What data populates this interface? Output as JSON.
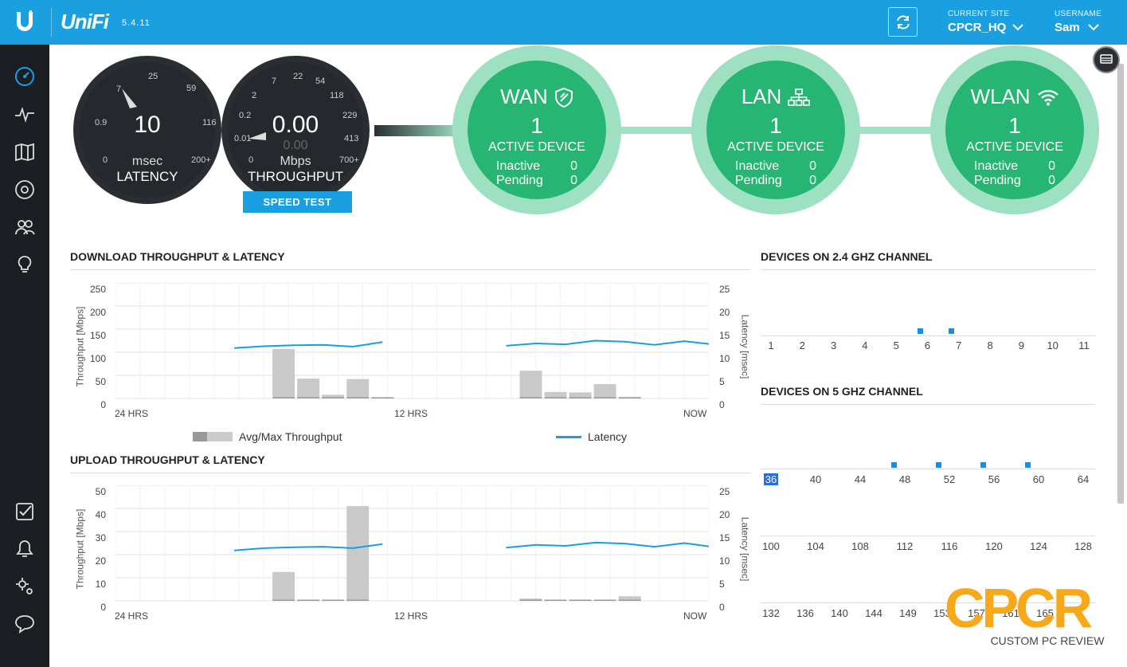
{
  "header": {
    "brand": "UniFi",
    "version": "5.4.11",
    "current_site_caption": "CURRENT SITE",
    "current_site": "CPCR_HQ",
    "username_caption": "USERNAME",
    "username": "Sam"
  },
  "sidebar": {
    "top_items": [
      "dashboard-icon",
      "statistics-icon",
      "map-icon",
      "devices-icon",
      "clients-icon",
      "insights-icon"
    ],
    "bottom_items": [
      "events-icon",
      "alerts-icon",
      "settings-icon",
      "chat-icon"
    ]
  },
  "gauges": {
    "latency": {
      "value": "10",
      "unit": "msec",
      "caption": "LATENCY",
      "ticks": [
        "0",
        "0.9",
        "7",
        "25",
        "59",
        "116",
        "200+"
      ]
    },
    "throughput": {
      "value": "0.00",
      "sub_value": "0.00",
      "unit": "Mbps",
      "caption": "THROUGHPUT",
      "ticks": [
        "0",
        "0.01",
        "0.2",
        "2",
        "7",
        "22",
        "54",
        "118",
        "229",
        "413",
        "700+"
      ]
    },
    "speed_test_label": "SPEED TEST"
  },
  "status": [
    {
      "title": "WAN",
      "count": "1",
      "label": "ACTIVE DEVICE",
      "inactive_label": "Inactive",
      "inactive": "0",
      "pending_label": "Pending",
      "pending": "0"
    },
    {
      "title": "LAN",
      "count": "1",
      "label": "ACTIVE DEVICE",
      "inactive_label": "Inactive",
      "inactive": "0",
      "pending_label": "Pending",
      "pending": "0"
    },
    {
      "title": "WLAN",
      "count": "1",
      "label": "ACTIVE DEVICE",
      "inactive_label": "Inactive",
      "inactive": "0",
      "pending_label": "Pending",
      "pending": "0"
    }
  ],
  "download": {
    "title": "DOWNLOAD THROUGHPUT & LATENCY",
    "y_left_title": "Throughput [Mbps]",
    "y_right_title": "Latency [msec]",
    "y_left_ticks": [
      "250",
      "200",
      "150",
      "100",
      "50",
      "0"
    ],
    "y_right_ticks": [
      "25",
      "20",
      "15",
      "10",
      "5",
      "0"
    ],
    "x_ticks": [
      "24 HRS",
      "12 HRS",
      "NOW"
    ],
    "legend_throughput": "Avg/Max Throughput",
    "legend_latency": "Latency"
  },
  "upload": {
    "title": "UPLOAD THROUGHPUT & LATENCY",
    "y_left_title": "Throughput [Mbps]",
    "y_right_title": "Latency [msec]",
    "y_left_ticks": [
      "50",
      "40",
      "30",
      "20",
      "10",
      "0"
    ],
    "y_right_ticks": [
      "25",
      "20",
      "15",
      "10",
      "5",
      "0"
    ],
    "x_ticks": [
      "24 HRS",
      "12 HRS",
      "NOW"
    ]
  },
  "chart_data": [
    {
      "type": "bar",
      "title": "DOWNLOAD THROUGHPUT & LATENCY",
      "ylabel": "Throughput [Mbps]",
      "y2label": "Latency [msec]",
      "ylim": [
        0,
        250
      ],
      "y2lim": [
        0,
        25
      ],
      "x_ticks": [
        "24 HRS",
        "12 HRS",
        "NOW"
      ],
      "xlim_hours": [
        -24,
        0
      ],
      "bars_throughput": [
        {
          "hour": -17.2,
          "value": 107
        },
        {
          "hour": -16.2,
          "value": 43
        },
        {
          "hour": -15.2,
          "value": 8
        },
        {
          "hour": -14.2,
          "value": 42
        },
        {
          "hour": -13.2,
          "value": 2
        },
        {
          "hour": -7.2,
          "value": 60
        },
        {
          "hour": -6.2,
          "value": 14
        },
        {
          "hour": -5.2,
          "value": 13
        },
        {
          "hour": -4.2,
          "value": 31
        },
        {
          "hour": -3.2,
          "value": 3
        }
      ],
      "latency_segments": [
        [
          {
            "hour": -19.2,
            "value": 10.9
          },
          {
            "hour": -18,
            "value": 11.3
          },
          {
            "hour": -16.8,
            "value": 11.5
          },
          {
            "hour": -15.6,
            "value": 11.6
          },
          {
            "hour": -14.4,
            "value": 11.2
          },
          {
            "hour": -13.2,
            "value": 12.2
          }
        ],
        [
          {
            "hour": -8.2,
            "value": 11.4
          },
          {
            "hour": -7,
            "value": 11.9
          },
          {
            "hour": -5.8,
            "value": 11.7
          },
          {
            "hour": -4.6,
            "value": 12.5
          },
          {
            "hour": -3.4,
            "value": 12.3
          },
          {
            "hour": -2.2,
            "value": 11.6
          },
          {
            "hour": -1,
            "value": 12.4
          },
          {
            "hour": 0,
            "value": 11.8
          }
        ]
      ],
      "legend": [
        "Avg/Max Throughput",
        "Latency"
      ]
    },
    {
      "type": "bar",
      "title": "UPLOAD THROUGHPUT & LATENCY",
      "ylabel": "Throughput [Mbps]",
      "y2label": "Latency [msec]",
      "ylim": [
        0,
        50
      ],
      "y2lim": [
        0,
        25
      ],
      "x_ticks": [
        "24 HRS",
        "12 HRS",
        "NOW"
      ],
      "xlim_hours": [
        -24,
        0
      ],
      "bars_throughput": [
        {
          "hour": -17.2,
          "value": 12.5
        },
        {
          "hour": -16.2,
          "value": 0.5
        },
        {
          "hour": -15.2,
          "value": 0.5
        },
        {
          "hour": -14.2,
          "value": 41
        },
        {
          "hour": -7.2,
          "value": 1
        },
        {
          "hour": -6.2,
          "value": 0.3
        },
        {
          "hour": -5.2,
          "value": 0.3
        },
        {
          "hour": -4.2,
          "value": 0.5
        },
        {
          "hour": -3.2,
          "value": 2
        }
      ],
      "latency_segments": [
        [
          {
            "hour": -19.2,
            "value": 10.9
          },
          {
            "hour": -18,
            "value": 11.4
          },
          {
            "hour": -16.8,
            "value": 11.6
          },
          {
            "hour": -15.6,
            "value": 11.7
          },
          {
            "hour": -14.4,
            "value": 11.4
          },
          {
            "hour": -13.2,
            "value": 12.3
          }
        ],
        [
          {
            "hour": -8.2,
            "value": 11.5
          },
          {
            "hour": -7,
            "value": 12.1
          },
          {
            "hour": -5.8,
            "value": 11.9
          },
          {
            "hour": -4.6,
            "value": 12.6
          },
          {
            "hour": -3.4,
            "value": 12.4
          },
          {
            "hour": -2.2,
            "value": 11.7
          },
          {
            "hour": -1,
            "value": 12.5
          },
          {
            "hour": 0,
            "value": 11.8
          }
        ]
      ]
    }
  ],
  "channels_24": {
    "title": "DEVICES ON 2.4 GHZ CHANNEL",
    "channels": [
      "1",
      "2",
      "3",
      "4",
      "5",
      "6",
      "7",
      "8",
      "9",
      "10",
      "11"
    ],
    "occupied": [
      "5.75",
      "6.75"
    ]
  },
  "channels_5": {
    "title": "DEVICES ON 5 GHZ CHANNEL",
    "row1": [
      "36",
      "40",
      "44",
      "48",
      "52",
      "56",
      "60",
      "64"
    ],
    "row1_occupied": [
      "47",
      "51",
      "55",
      "59"
    ],
    "row2": [
      "100",
      "104",
      "108",
      "112",
      "116",
      "120",
      "124",
      "128"
    ],
    "row3": [
      "132",
      "136",
      "140",
      "144",
      "149",
      "153",
      "157",
      "161",
      "165"
    ]
  },
  "watermark": {
    "text": "CPCR",
    "subtitle": "CUSTOM PC REVIEW",
    "color": "#f7a81b"
  },
  "colors": {
    "brand": "#1aa0e0",
    "sidebar": "#1b1f24",
    "green": "#27b574",
    "green_ring": "#9ee0c2",
    "latency_line": "#1a9ee0",
    "bar": "#c9c9c9"
  }
}
